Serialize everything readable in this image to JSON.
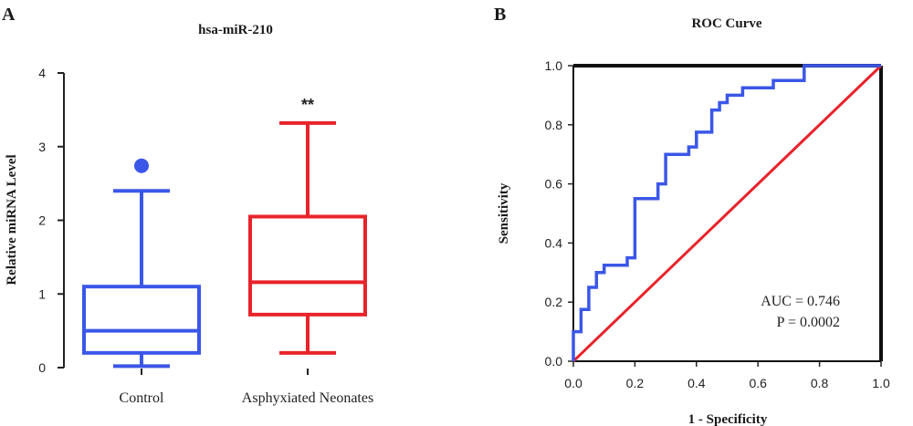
{
  "chart_data": [
    {
      "panel": "A",
      "type": "box",
      "title": "hsa-miR-210",
      "xlabel": "",
      "ylabel": "Relative miRNA Level",
      "ylim": [
        0,
        4
      ],
      "yticks": [
        "0",
        "1",
        "2",
        "3",
        "4"
      ],
      "grid": false,
      "categories": [
        "Control",
        "Asphyxiated Neonates"
      ],
      "boxes": [
        {
          "category": "Control",
          "color": "#3b57e8",
          "whisker_low": 0.02,
          "q1": 0.2,
          "median": 0.5,
          "q3": 1.1,
          "whisker_high": 2.4,
          "outliers": [
            2.74
          ]
        },
        {
          "category": "Asphyxiated Neonates",
          "color": "#e8232a",
          "whisker_low": 0.2,
          "q1": 0.72,
          "median": 1.16,
          "q3": 2.05,
          "whisker_high": 3.32,
          "outliers": [],
          "significance": "**"
        }
      ]
    },
    {
      "panel": "B",
      "type": "line",
      "title": "ROC Curve",
      "xlabel": "1 - Specificity",
      "ylabel": "Sensitivity",
      "xlim": [
        0,
        1
      ],
      "ylim": [
        0,
        1
      ],
      "xticks": [
        "0.0",
        "0.2",
        "0.4",
        "0.6",
        "0.8",
        "1.0"
      ],
      "yticks": [
        "0.0",
        "0.2",
        "0.4",
        "0.6",
        "0.8",
        "1.0"
      ],
      "grid": false,
      "annotations": [
        "AUC = 0.746",
        "P = 0.0002"
      ],
      "series": [
        {
          "color": "#3b57e8",
          "x": [
            0,
            0,
            0.025,
            0.025,
            0.05,
            0.05,
            0.075,
            0.075,
            0.1,
            0.1,
            0.125,
            0.125,
            0.175,
            0.175,
            0.2,
            0.2,
            0.275,
            0.275,
            0.3,
            0.3,
            0.375,
            0.375,
            0.4,
            0.4,
            0.45,
            0.45,
            0.475,
            0.475,
            0.5,
            0.5,
            0.55,
            0.55,
            0.65,
            0.65,
            0.75,
            0.75,
            1.0
          ],
          "y": [
            0,
            0.1,
            0.1,
            0.175,
            0.175,
            0.25,
            0.25,
            0.3,
            0.3,
            0.325,
            0.325,
            0.325,
            0.325,
            0.35,
            0.35,
            0.55,
            0.55,
            0.6,
            0.6,
            0.7,
            0.7,
            0.725,
            0.725,
            0.775,
            0.775,
            0.85,
            0.85,
            0.875,
            0.875,
            0.9,
            0.9,
            0.925,
            0.925,
            0.95,
            0.95,
            1.0,
            1.0
          ]
        },
        {
          "color": "#e8232a",
          "x": [
            0,
            1
          ],
          "y": [
            0,
            1
          ]
        }
      ]
    }
  ]
}
